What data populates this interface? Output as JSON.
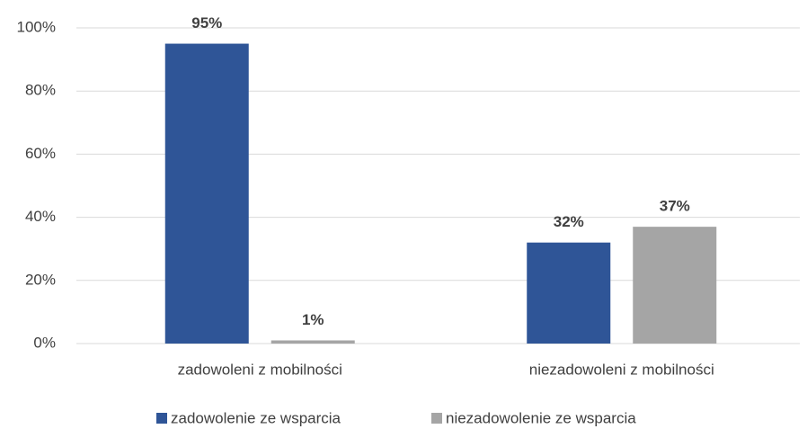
{
  "chart_data": {
    "type": "bar",
    "categories": [
      "zadowoleni z mobilności",
      "niezadowoleni z mobilności"
    ],
    "series": [
      {
        "name": "zadowolenie ze wsparcia",
        "color": "#2f5597",
        "values": [
          95,
          32
        ],
        "value_labels": [
          "95%",
          "32%"
        ]
      },
      {
        "name": "niezadowolenie ze wsparcia",
        "color": "#a5a5a5",
        "values": [
          1,
          37
        ],
        "value_labels": [
          "1%",
          "37%"
        ]
      }
    ],
    "ylim": [
      0,
      100
    ],
    "yticks": [
      {
        "value": 0,
        "label": "0%"
      },
      {
        "value": 20,
        "label": "20%"
      },
      {
        "value": 40,
        "label": "40%"
      },
      {
        "value": 60,
        "label": "60%"
      },
      {
        "value": 80,
        "label": "80%"
      },
      {
        "value": 100,
        "label": "100%"
      }
    ],
    "grid": true,
    "legend": "bottom"
  }
}
